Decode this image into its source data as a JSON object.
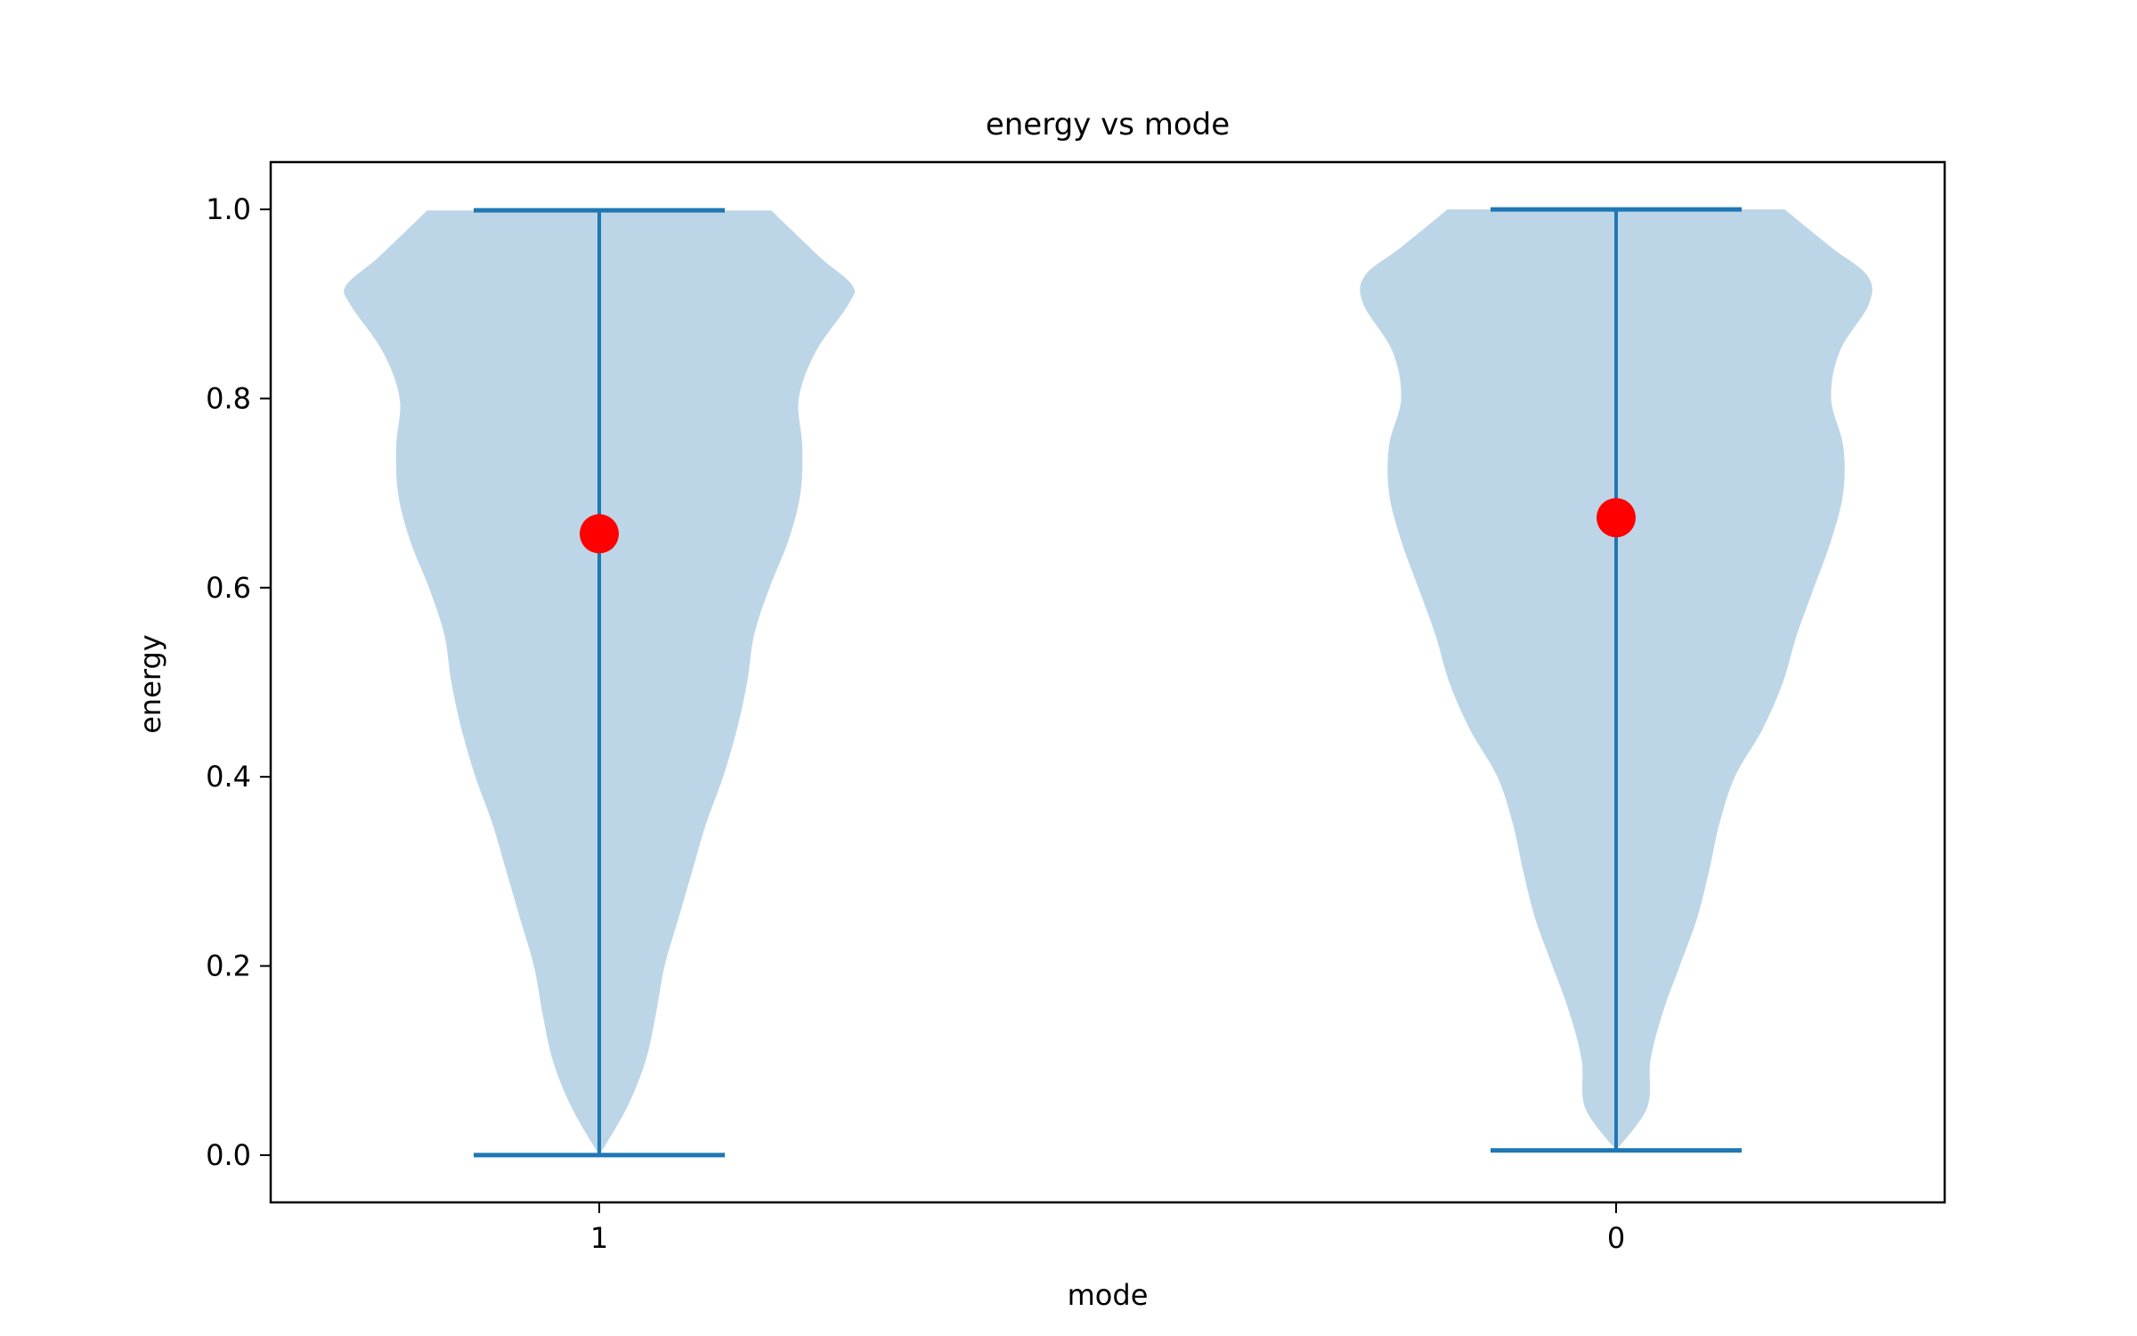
{
  "chart_data": {
    "type": "violin",
    "title": "energy vs mode",
    "xlabel": "mode",
    "ylabel": "energy",
    "categories": [
      "1",
      "0"
    ],
    "ylim": [
      -0.05,
      1.05
    ],
    "yticks": [
      "0.0",
      "0.2",
      "0.4",
      "0.6",
      "0.8",
      "1.0"
    ],
    "grid": false,
    "colors": {
      "body": "#bcd6e8",
      "lines": "#1f77b4",
      "mean_marker": "#ff0000",
      "frame": "#000000"
    },
    "series": [
      {
        "category": "1",
        "min": 0.0,
        "max": 0.999,
        "mean": 0.657,
        "density_profile": [
          [
            0.0,
            0.0
          ],
          [
            0.05,
            0.16
          ],
          [
            0.1,
            0.27
          ],
          [
            0.15,
            0.33
          ],
          [
            0.2,
            0.38
          ],
          [
            0.25,
            0.46
          ],
          [
            0.3,
            0.54
          ],
          [
            0.35,
            0.62
          ],
          [
            0.4,
            0.72
          ],
          [
            0.45,
            0.8
          ],
          [
            0.5,
            0.86
          ],
          [
            0.55,
            0.9
          ],
          [
            0.6,
            0.99
          ],
          [
            0.65,
            1.1
          ],
          [
            0.7,
            1.17
          ],
          [
            0.75,
            1.18
          ],
          [
            0.8,
            1.16
          ],
          [
            0.85,
            1.26
          ],
          [
            0.9,
            1.45
          ],
          [
            0.92,
            1.47
          ],
          [
            0.95,
            1.28
          ],
          [
            0.999,
            1.0
          ]
        ]
      },
      {
        "category": "0",
        "min": 0.005,
        "max": 1.0,
        "mean": 0.674,
        "density_profile": [
          [
            0.005,
            0.0
          ],
          [
            0.05,
            0.18
          ],
          [
            0.1,
            0.2
          ],
          [
            0.15,
            0.27
          ],
          [
            0.2,
            0.37
          ],
          [
            0.25,
            0.47
          ],
          [
            0.3,
            0.54
          ],
          [
            0.35,
            0.6
          ],
          [
            0.4,
            0.69
          ],
          [
            0.45,
            0.85
          ],
          [
            0.5,
            0.97
          ],
          [
            0.55,
            1.05
          ],
          [
            0.6,
            1.15
          ],
          [
            0.65,
            1.25
          ],
          [
            0.7,
            1.32
          ],
          [
            0.75,
            1.32
          ],
          [
            0.8,
            1.25
          ],
          [
            0.85,
            1.3
          ],
          [
            0.9,
            1.47
          ],
          [
            0.93,
            1.46
          ],
          [
            0.96,
            1.25
          ],
          [
            1.0,
            0.98
          ]
        ]
      }
    ]
  }
}
